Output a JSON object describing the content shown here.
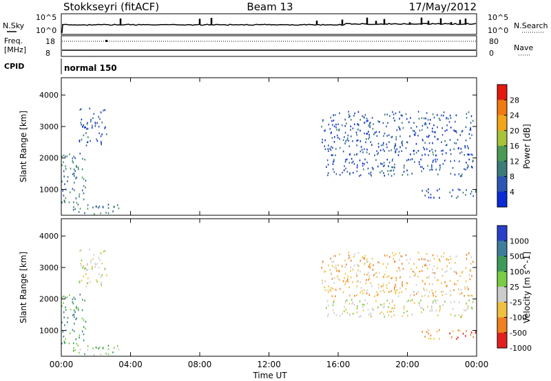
{
  "header": {
    "station": "Stokkseyri (fitACF)",
    "beam": "Beam 13",
    "date": "17/May/2012"
  },
  "status_panels": {
    "nsky_label": "N.Sky",
    "nsearch_label": "N.Search",
    "noise_ticks_left": [
      "10^5",
      "10^0"
    ],
    "noise_ticks_right": [
      "10^5",
      "10^0"
    ],
    "freq_label_line1": "Freq.",
    "freq_label_line2": "[MHz]",
    "freq_ticks": [
      "18",
      "8"
    ],
    "nave_label": "Nave",
    "nave_ticks": [
      "80",
      "0"
    ],
    "cpid_label": "CPID",
    "cpid_value": "normal 150"
  },
  "chart_data": [
    {
      "type": "heatmap",
      "parameter": "Power",
      "ylabel": "Slant Range [km]",
      "xlabel": "Time UT",
      "x_ticks": [
        "00:00",
        "04:00",
        "08:00",
        "12:00",
        "16:00",
        "20:00",
        "00:00"
      ],
      "x_range_hours": [
        0,
        24
      ],
      "y_ticks": [
        1000,
        2000,
        3000,
        4000
      ],
      "ylim": [
        180,
        4550
      ],
      "colorbar_label": "Power [dB]",
      "colorbar_ticks": [
        4,
        8,
        12,
        16,
        20,
        24,
        28
      ],
      "colors": [
        "#0a2bd6",
        "#2c55b5",
        "#3d7a7a",
        "#4d9a56",
        "#a8c23a",
        "#f2a41a",
        "#f07a10",
        "#e21a10"
      ],
      "regions": [
        {
          "t": [
            0.05,
            3.3
          ],
          "r": [
            250,
            550
          ],
          "value": 10
        },
        {
          "t": [
            0.0,
            1.4
          ],
          "r": [
            600,
            2200
          ],
          "value": 11
        },
        {
          "t": [
            1.0,
            2.6
          ],
          "r": [
            2400,
            3600
          ],
          "value": 7
        },
        {
          "t": [
            15.2,
            24.0
          ],
          "r": [
            1450,
            2000
          ],
          "value": 5
        },
        {
          "t": [
            20.8,
            24.0
          ],
          "r": [
            750,
            1050
          ],
          "value": 6
        },
        {
          "t": [
            15.0,
            23.8
          ],
          "r": [
            2100,
            3500
          ],
          "value": 4
        }
      ]
    },
    {
      "type": "heatmap",
      "parameter": "Velocity",
      "ylabel": "Slant Range [km]",
      "xlabel": "Time UT",
      "x_ticks": [
        "00:00",
        "04:00",
        "08:00",
        "12:00",
        "16:00",
        "20:00",
        "00:00"
      ],
      "x_range_hours": [
        0,
        24
      ],
      "y_ticks": [
        1000,
        2000,
        3000,
        4000
      ],
      "ylim": [
        180,
        4550
      ],
      "colorbar_label": "Velocity [m s^-1]",
      "colorbar_ticks": [
        "1000",
        "500",
        "100",
        "25",
        "-25",
        "-100",
        "-500",
        "-1000"
      ],
      "colors": [
        "#2a40c8",
        "#3f7e9a",
        "#3f9a5a",
        "#7acc44",
        "#cccccc",
        "#f0c040",
        "#f08020",
        "#e02020"
      ],
      "regions": [
        {
          "t": [
            0.05,
            3.3
          ],
          "r": [
            250,
            550
          ],
          "value": 25
        },
        {
          "t": [
            0.0,
            1.4
          ],
          "r": [
            600,
            2200
          ],
          "value": 300
        },
        {
          "t": [
            1.0,
            2.6
          ],
          "r": [
            2400,
            3600
          ],
          "value": 0
        },
        {
          "t": [
            15.2,
            24.0
          ],
          "r": [
            1450,
            2000
          ],
          "value": 0
        },
        {
          "t": [
            20.8,
            24.0
          ],
          "r": [
            750,
            1050
          ],
          "value": -300
        },
        {
          "t": [
            15.0,
            23.8
          ],
          "r": [
            2100,
            3500
          ],
          "value": -50
        }
      ]
    }
  ]
}
